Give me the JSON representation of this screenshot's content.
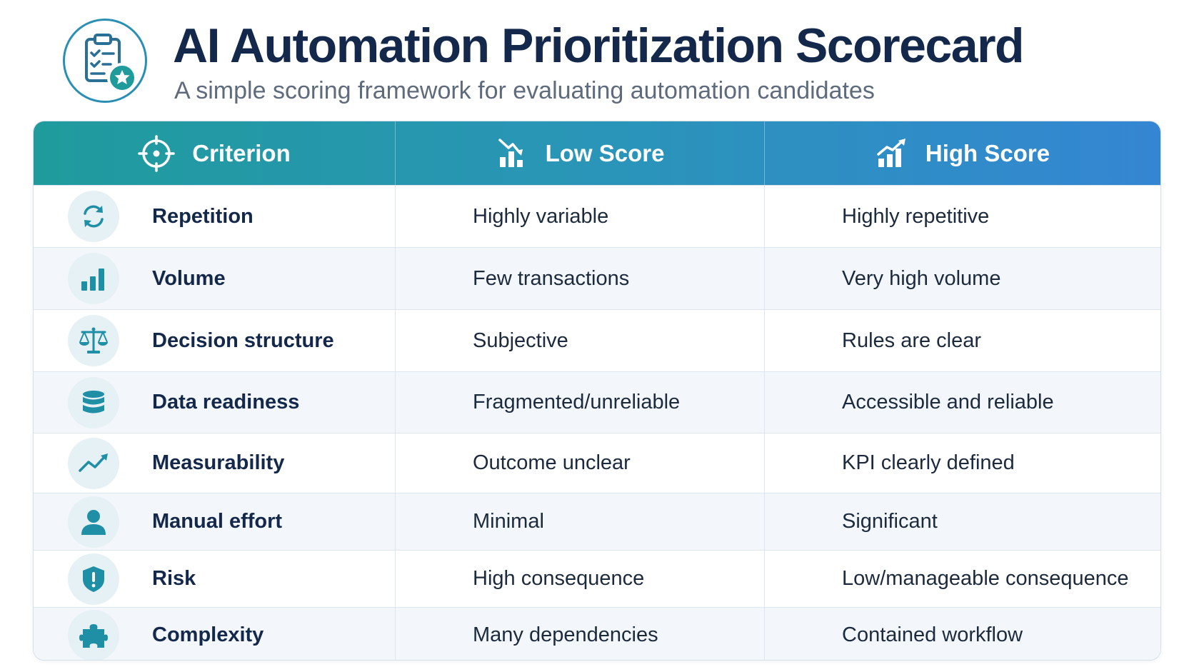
{
  "header": {
    "title": "AI Automation Prioritization Scorecard",
    "subtitle": "A simple scoring framework for evaluating automation candidates",
    "logo_icon": "clipboard-star-icon"
  },
  "table": {
    "columns": [
      {
        "label": "Criterion",
        "icon": "target-icon"
      },
      {
        "label": "Low Score",
        "icon": "chart-down-icon"
      },
      {
        "label": "High Score",
        "icon": "chart-up-icon"
      }
    ],
    "rows": [
      {
        "criterion": "Repetition",
        "low": "Highly variable",
        "high": "Highly repetitive",
        "icon": "refresh-icon"
      },
      {
        "criterion": "Volume",
        "low": "Few transactions",
        "high": "Very high volume",
        "icon": "bar-chart-icon"
      },
      {
        "criterion": "Decision structure",
        "low": "Subjective",
        "high": "Rules are clear",
        "icon": "scale-icon"
      },
      {
        "criterion": "Data readiness",
        "low": "Fragmented/unreliable",
        "high": "Accessible and reliable",
        "icon": "database-icon"
      },
      {
        "criterion": "Measurability",
        "low": "Outcome unclear",
        "high": "KPI clearly defined",
        "icon": "trend-up-icon"
      },
      {
        "criterion": "Manual effort",
        "low": "Minimal",
        "high": "Significant",
        "icon": "person-icon"
      },
      {
        "criterion": "Risk",
        "low": "High consequence",
        "high": "Low/manageable consequence",
        "icon": "shield-alert-icon"
      },
      {
        "criterion": "Complexity",
        "low": "Many dependencies",
        "high": "Contained workflow",
        "icon": "puzzle-icon"
      }
    ]
  },
  "colors": {
    "title": "#13284a",
    "accent_teal": "#1f9b9c",
    "accent_blue": "#3486d2",
    "icon": "#1f8fa6"
  }
}
